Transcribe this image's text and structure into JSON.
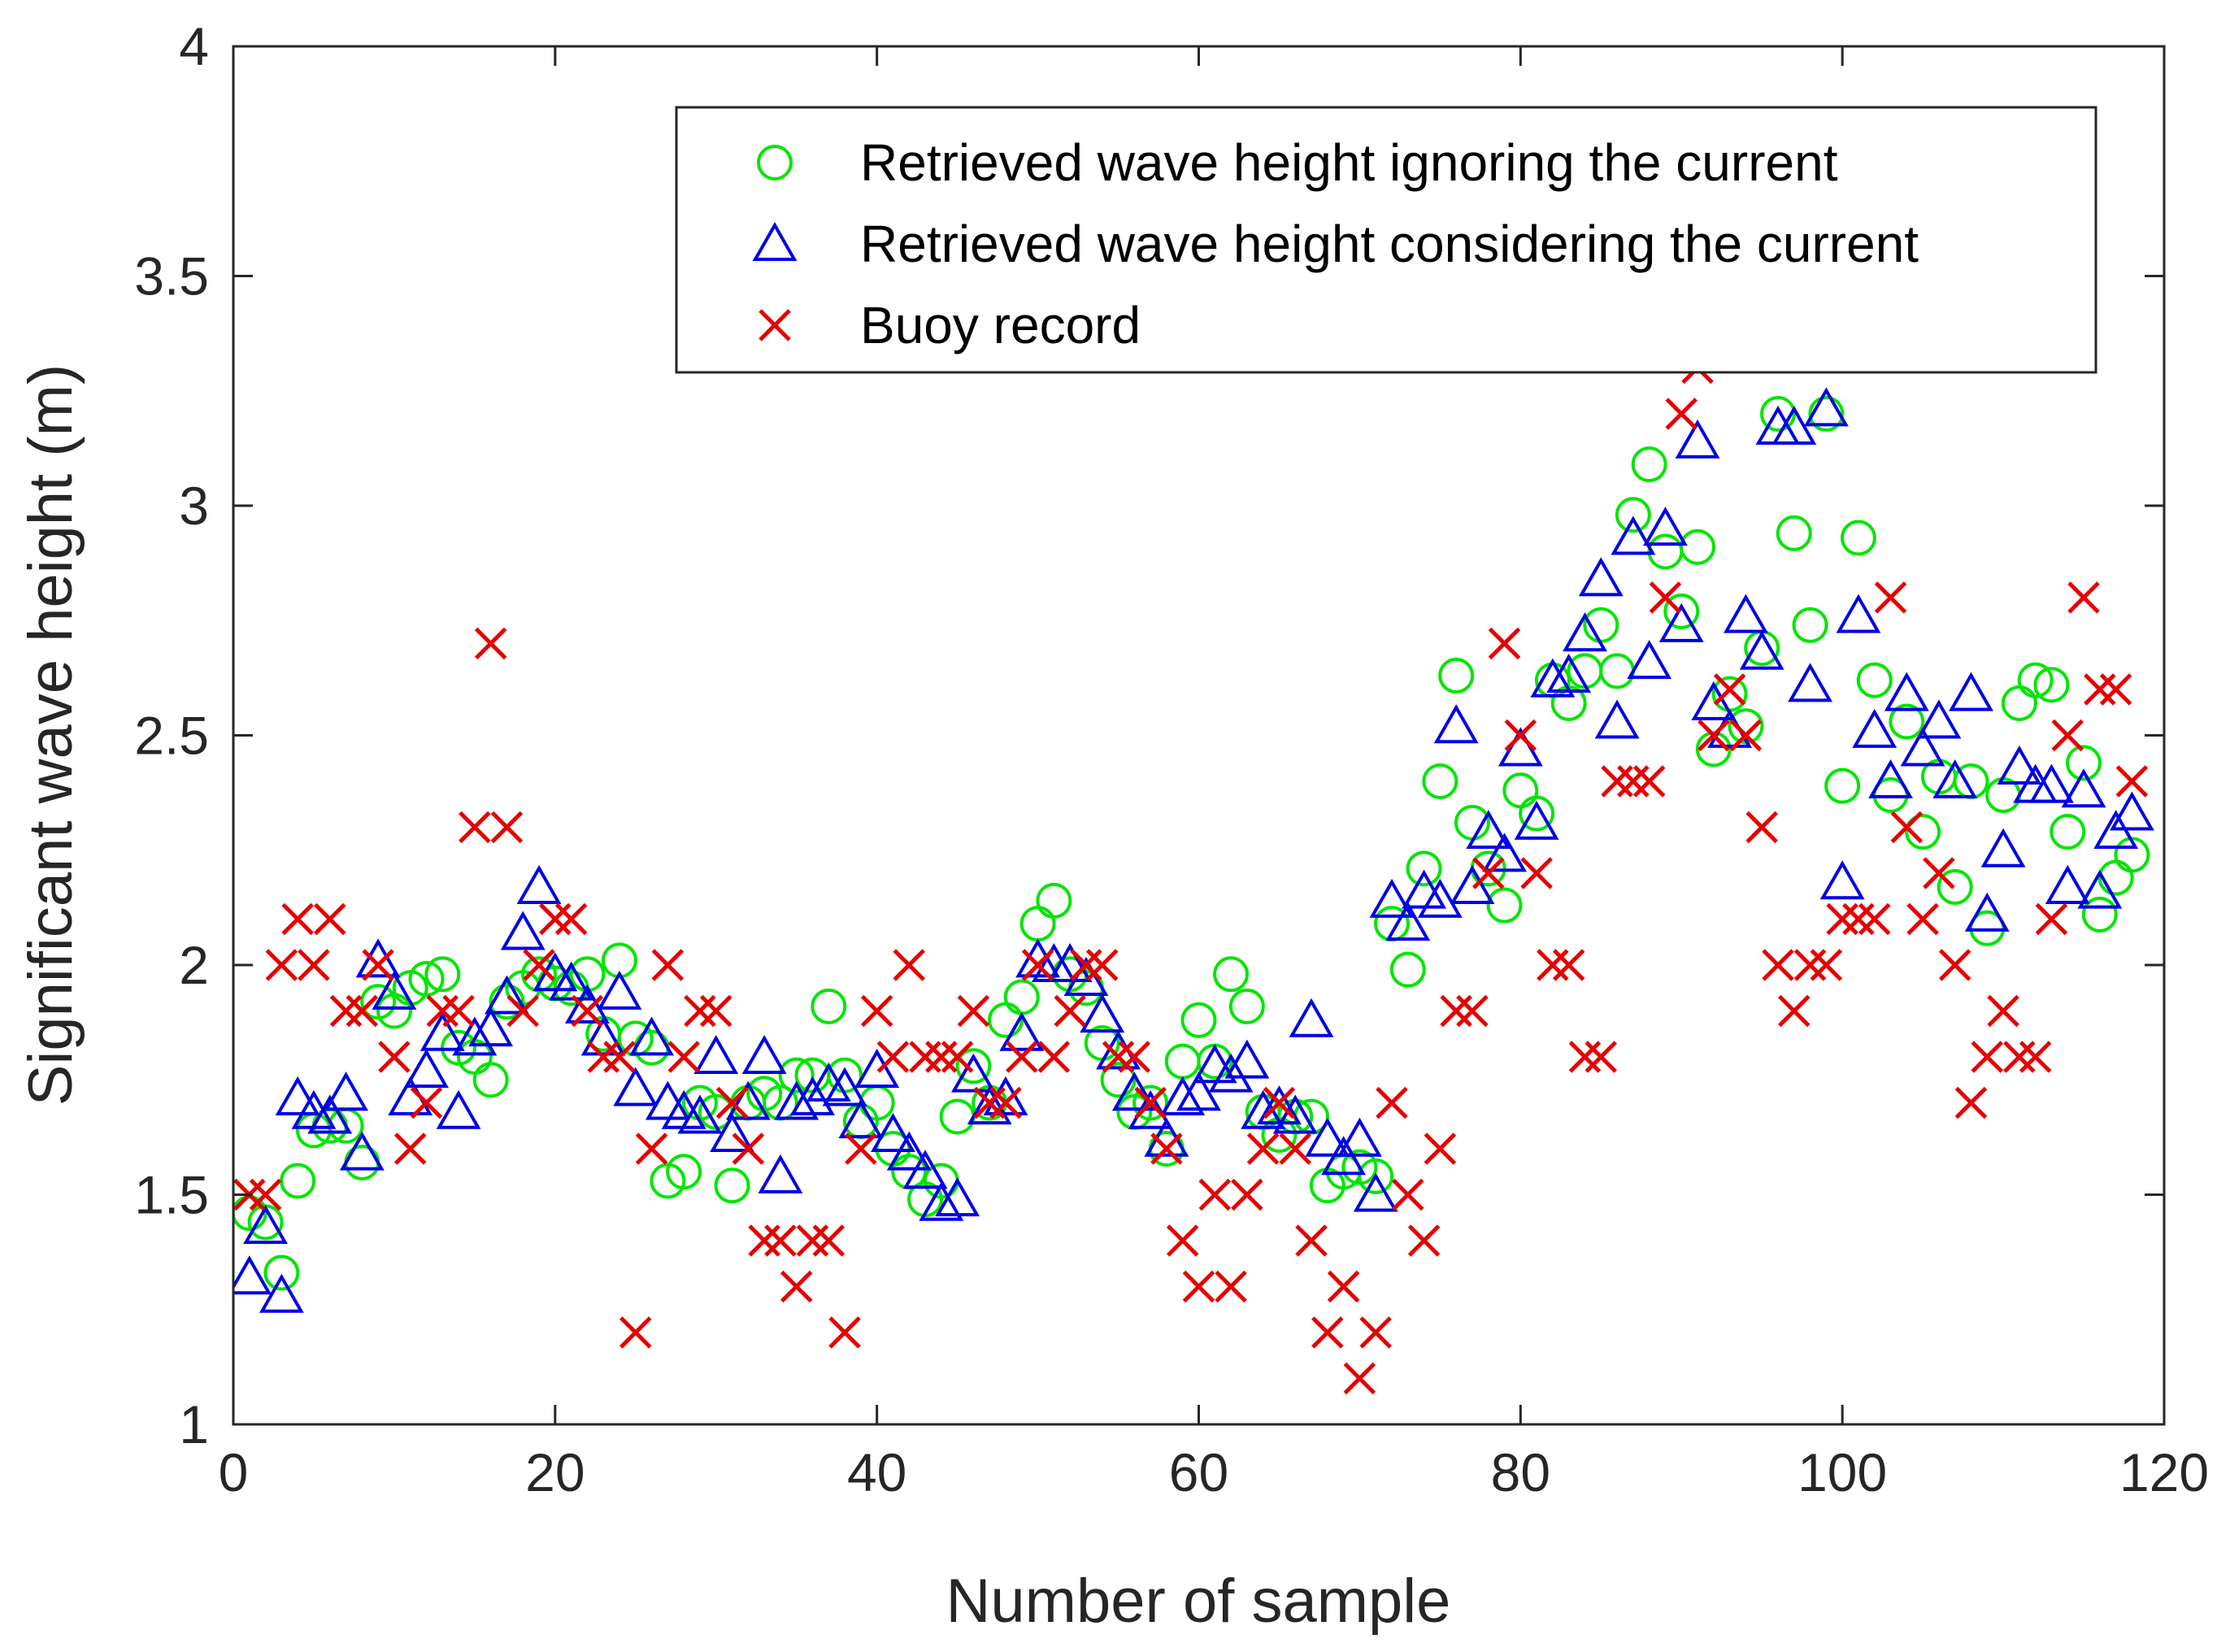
{
  "chart_data": {
    "type": "scatter",
    "title": "",
    "xlabel": "Number of sample",
    "ylabel": "Significant wave height (m)",
    "xlim": [
      0,
      120
    ],
    "ylim": [
      1,
      4
    ],
    "xticks": [
      "0",
      "20",
      "40",
      "60",
      "80",
      "100",
      "120"
    ],
    "yticks": [
      "1",
      "1.5",
      "2",
      "2.5",
      "3",
      "3.5",
      "4"
    ],
    "grid": false,
    "legend_position": "top-right",
    "x": [
      1,
      2,
      3,
      4,
      5,
      6,
      7,
      8,
      9,
      10,
      11,
      12,
      13,
      14,
      15,
      16,
      17,
      18,
      19,
      20,
      21,
      22,
      23,
      24,
      25,
      26,
      27,
      28,
      29,
      30,
      31,
      32,
      33,
      34,
      35,
      36,
      37,
      38,
      39,
      40,
      41,
      42,
      43,
      44,
      45,
      46,
      47,
      48,
      49,
      50,
      51,
      52,
      53,
      54,
      55,
      56,
      57,
      58,
      59,
      60,
      61,
      62,
      63,
      64,
      65,
      66,
      67,
      68,
      69,
      70,
      71,
      72,
      73,
      74,
      75,
      76,
      77,
      78,
      79,
      80,
      81,
      82,
      83,
      84,
      85,
      86,
      87,
      88,
      89,
      90,
      91,
      92,
      93,
      94,
      95,
      96,
      97,
      98,
      99,
      100,
      101,
      102,
      103,
      104,
      105,
      106,
      107,
      108,
      109,
      110,
      111,
      112,
      113,
      114,
      115,
      116,
      117,
      118
    ],
    "series": [
      {
        "name": "Retrieved wave height ignoring the current",
        "marker": "circle",
        "color": "#00e600",
        "values": [
          1.46,
          1.44,
          1.33,
          1.53,
          1.64,
          1.65,
          1.65,
          1.57,
          1.92,
          1.9,
          1.95,
          1.97,
          1.98,
          1.82,
          1.8,
          1.75,
          1.92,
          1.95,
          1.98,
          1.96,
          1.95,
          1.98,
          1.85,
          2.01,
          1.84,
          1.82,
          1.53,
          1.55,
          1.7,
          1.68,
          1.52,
          1.7,
          1.72,
          1.7,
          1.76,
          1.76,
          1.91,
          1.76,
          1.66,
          1.7,
          1.6,
          1.55,
          1.49,
          1.53,
          1.67,
          1.78,
          1.7,
          1.88,
          1.93,
          2.09,
          2.14,
          1.98,
          1.95,
          1.83,
          1.75,
          1.68,
          1.7,
          1.6,
          1.79,
          1.88,
          1.79,
          1.98,
          1.91,
          1.68,
          1.63,
          1.67,
          1.67,
          1.52,
          1.55,
          1.56,
          1.54,
          2.09,
          1.99,
          2.21,
          2.4,
          2.63,
          2.31,
          2.21,
          2.13,
          2.38,
          2.33,
          2.62,
          2.57,
          2.64,
          2.74,
          2.64,
          2.98,
          3.09,
          2.9,
          2.77,
          2.91,
          2.47,
          2.59,
          2.52,
          2.69,
          3.2,
          2.94,
          2.74,
          3.2,
          2.39,
          2.93,
          2.62,
          2.37,
          2.53,
          2.29,
          2.41,
          2.17,
          2.4,
          2.08,
          2.37,
          2.57,
          2.62,
          2.61,
          2.29,
          2.44,
          2.11,
          2.19,
          2.24
        ]
      },
      {
        "name": "Retrieved wave height considering the current",
        "marker": "triangle",
        "color": "#0000e6",
        "values": [
          1.32,
          1.43,
          1.28,
          1.71,
          1.68,
          1.67,
          1.72,
          1.59,
          2.01,
          1.94,
          1.71,
          1.77,
          1.85,
          1.68,
          1.84,
          1.86,
          1.93,
          2.07,
          2.17,
          1.98,
          1.96,
          1.91,
          1.84,
          1.94,
          1.73,
          1.84,
          1.7,
          1.68,
          1.67,
          1.8,
          1.63,
          1.7,
          1.8,
          1.54,
          1.7,
          1.71,
          1.74,
          1.73,
          1.66,
          1.77,
          1.63,
          1.59,
          1.55,
          1.48,
          1.49,
          1.76,
          1.69,
          1.71,
          1.85,
          2.01,
          2.0,
          2.0,
          1.97,
          1.89,
          1.81,
          1.72,
          1.68,
          1.62,
          1.71,
          1.72,
          1.78,
          1.76,
          1.79,
          1.68,
          1.69,
          1.67,
          1.88,
          1.62,
          1.58,
          1.62,
          1.5,
          2.14,
          2.09,
          2.16,
          2.14,
          2.52,
          2.17,
          2.29,
          2.24,
          2.47,
          2.31,
          2.62,
          2.63,
          2.72,
          2.84,
          2.53,
          2.93,
          2.66,
          2.95,
          2.74,
          3.14,
          2.57,
          2.51,
          2.76,
          2.68,
          3.17,
          3.17,
          2.61,
          3.21,
          2.18,
          2.76,
          2.51,
          2.4,
          2.59,
          2.47,
          2.53,
          2.4,
          2.59,
          2.11,
          2.25,
          2.43,
          2.39,
          2.39,
          2.17,
          2.38,
          2.16,
          2.29,
          2.33
        ]
      },
      {
        "name": "Buoy record",
        "marker": "x",
        "color": "#e60000",
        "values": [
          1.5,
          1.5,
          2.0,
          2.1,
          2.0,
          2.1,
          1.9,
          1.9,
          2.0,
          1.8,
          1.6,
          1.7,
          1.9,
          1.9,
          2.3,
          2.7,
          2.3,
          1.9,
          2.0,
          2.1,
          2.1,
          1.9,
          1.8,
          1.8,
          1.2,
          1.6,
          2.0,
          1.8,
          1.9,
          1.9,
          1.7,
          1.6,
          1.4,
          1.4,
          1.3,
          1.4,
          1.4,
          1.2,
          1.6,
          1.9,
          1.8,
          2.0,
          1.8,
          1.8,
          1.8,
          1.9,
          1.7,
          1.7,
          1.8,
          2.0,
          1.8,
          1.9,
          2.0,
          2.0,
          1.8,
          1.8,
          1.7,
          1.6,
          1.4,
          1.3,
          1.5,
          1.3,
          1.5,
          1.6,
          1.7,
          1.6,
          1.4,
          1.2,
          1.3,
          1.1,
          1.2,
          1.7,
          1.5,
          1.4,
          1.6,
          1.9,
          1.9,
          2.2,
          2.7,
          2.5,
          2.2,
          2.0,
          2.0,
          1.8,
          1.8,
          2.4,
          2.4,
          2.4,
          2.8,
          3.2,
          3.3,
          2.5,
          2.6,
          2.5,
          2.3,
          2.0,
          1.9,
          2.0,
          2.0,
          2.1,
          2.1,
          2.1,
          2.8,
          2.3,
          2.1,
          2.2,
          2.0,
          1.7,
          1.8,
          1.9,
          1.8,
          1.8,
          2.1,
          2.5,
          2.8,
          2.6,
          2.6,
          2.4
        ]
      }
    ]
  }
}
